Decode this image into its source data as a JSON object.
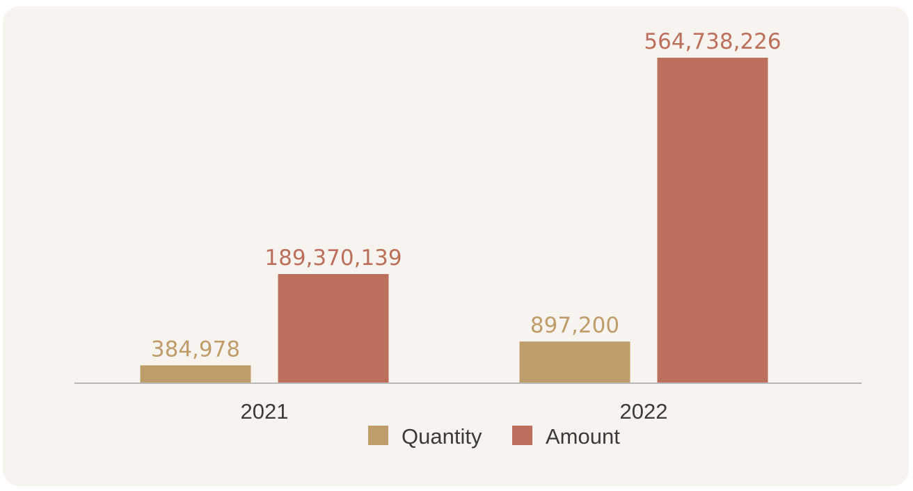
{
  "chart_data": {
    "type": "bar",
    "categories": [
      "2021",
      "2022"
    ],
    "series": [
      {
        "name": "Quantity",
        "values": [
          384978,
          897200
        ],
        "labels": [
          "384,978",
          "897,200"
        ],
        "color": "#bf9d6b"
      },
      {
        "name": "Amount",
        "values": [
          189370139,
          564738226
        ],
        "labels": [
          "189,370,139",
          "564,738,226"
        ],
        "color": "#bb6f5c"
      }
    ],
    "title": "",
    "xlabel": "",
    "ylabel": "",
    "grid": false,
    "legend_position": "bottom",
    "axis_color": "#b8b8b8"
  }
}
